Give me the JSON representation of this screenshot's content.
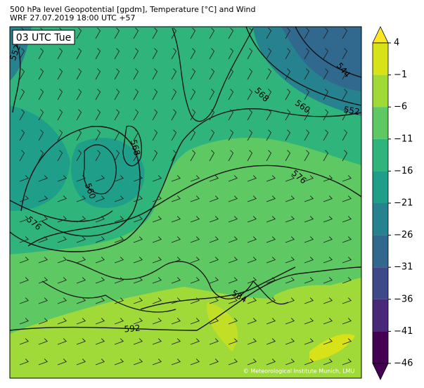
{
  "header": {
    "title": "500 hPa level Geopotential [gpdm], Temperature [°C] and Wind",
    "subtitle": "WRF 27.07.2019 18:00 UTC +57"
  },
  "map": {
    "time_label": "03 UTC Tue",
    "credit": "© Meteorological Institute Munich, LMU",
    "contour_labels": [
      "552",
      "544",
      "568",
      "560",
      "552",
      "568",
      "560",
      "576",
      "576",
      "584",
      "592"
    ]
  },
  "colorbar": {
    "ticks": [
      {
        "value": 4,
        "label": "4"
      },
      {
        "value": -1,
        "label": "−1"
      },
      {
        "value": -6,
        "label": "−6"
      },
      {
        "value": -11,
        "label": "−11"
      },
      {
        "value": -16,
        "label": "−16"
      },
      {
        "value": -21,
        "label": "−21"
      },
      {
        "value": -26,
        "label": "−26"
      },
      {
        "value": -31,
        "label": "−31"
      },
      {
        "value": -36,
        "label": "−36"
      },
      {
        "value": -41,
        "label": "−41"
      },
      {
        "value": -46,
        "label": "−46"
      }
    ],
    "colors": [
      "#d8e219",
      "#a0da39",
      "#5ec962",
      "#2fb47c",
      "#1f9e89",
      "#26828e",
      "#31688e",
      "#3e4989",
      "#482878",
      "#440154"
    ],
    "over_color": "#fde725",
    "under_color": "#440154"
  }
}
